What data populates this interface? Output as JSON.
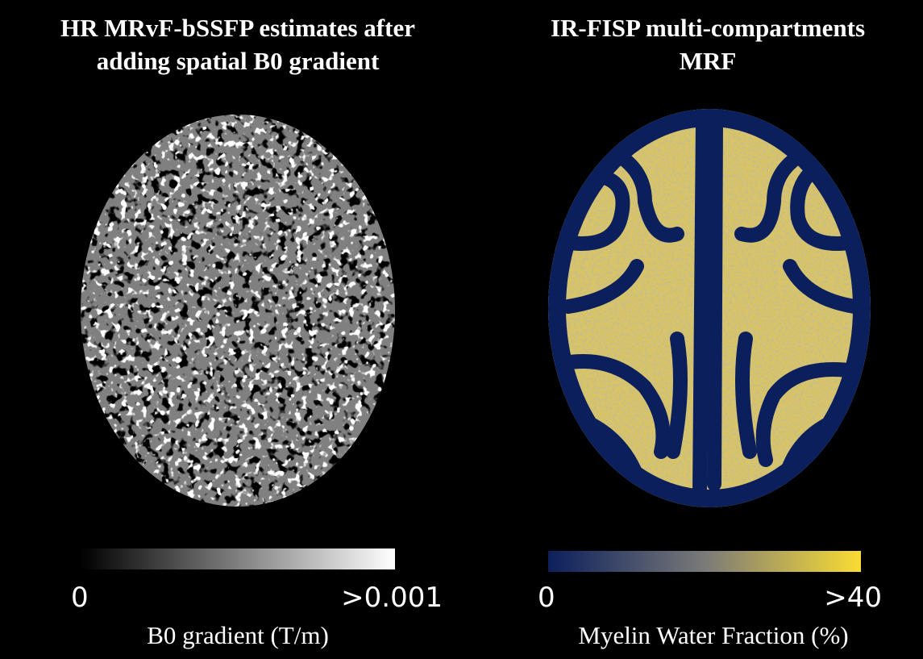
{
  "panels": [
    {
      "title_lines": [
        "HR MRvF-bSSFP estimates after",
        "adding spatial B0 gradient"
      ],
      "colorbar": {
        "min_label": "0",
        "max_label": ">0.001",
        "label": "B0 gradient (T/m)"
      }
    },
    {
      "title_lines": [
        "IR-FISP multi-compartments",
        "MRF"
      ],
      "colorbar": {
        "min_label": "0",
        "max_label": ">40",
        "label": "Myelin Water Fraction (%)"
      }
    }
  ]
}
